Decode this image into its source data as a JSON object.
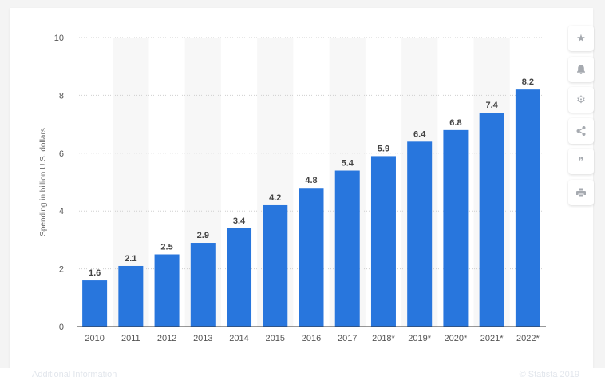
{
  "chart_data": {
    "type": "bar",
    "categories": [
      "2010",
      "2011",
      "2012",
      "2013",
      "2014",
      "2015",
      "2016",
      "2017",
      "2018*",
      "2019*",
      "2020*",
      "2021*",
      "2022*"
    ],
    "values": [
      1.6,
      2.1,
      2.5,
      2.9,
      3.4,
      4.2,
      4.8,
      5.4,
      5.9,
      6.4,
      6.8,
      7.4,
      8.2
    ],
    "ylabel": "Spending in billion U.S. dollars",
    "ylim": [
      0,
      10
    ],
    "yticks": [
      0,
      2,
      4,
      6,
      8,
      10
    ],
    "grid": true,
    "bar_color": "#2876dd",
    "band_color": "#f7f7f7",
    "label_color": "#444444",
    "tick_color": "#555555"
  },
  "toolbar": {
    "buttons": [
      {
        "icon": "star-icon",
        "glyph": "★"
      },
      {
        "icon": "bell-icon",
        "glyph": ""
      },
      {
        "icon": "gear-icon",
        "glyph": "⚙"
      },
      {
        "icon": "share-icon",
        "glyph": ""
      },
      {
        "icon": "quote-icon",
        "glyph": "❞"
      },
      {
        "icon": "print-icon",
        "glyph": ""
      }
    ]
  },
  "footer": {
    "additional_info": "Additional Information",
    "copyright": "© Statista 2019"
  }
}
